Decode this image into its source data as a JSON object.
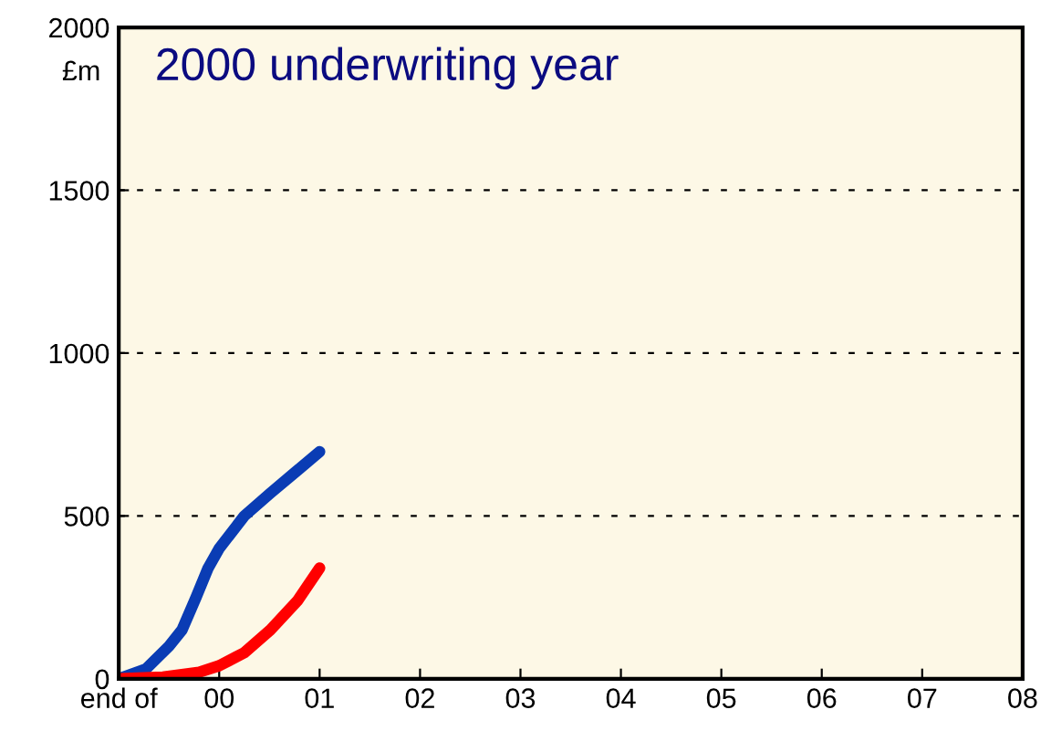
{
  "chart_data": {
    "type": "line",
    "title": "2000 underwriting year",
    "ylabel": "£m",
    "xlim": [
      -1,
      8
    ],
    "xticks": [
      {
        "value": -1,
        "label": "end of"
      },
      {
        "value": 0,
        "label": "00"
      },
      {
        "value": 1,
        "label": "01"
      },
      {
        "value": 2,
        "label": "02"
      },
      {
        "value": 3,
        "label": "03"
      },
      {
        "value": 4,
        "label": "04"
      },
      {
        "value": 5,
        "label": "05"
      },
      {
        "value": 6,
        "label": "06"
      },
      {
        "value": 7,
        "label": "07"
      },
      {
        "value": 8,
        "label": "08"
      }
    ],
    "ylim": [
      0,
      2000
    ],
    "yticks": [
      0,
      500,
      1000,
      1500,
      2000
    ],
    "grid": "y",
    "line_style": "solid",
    "marker": "none",
    "legend": false,
    "series": [
      {
        "color": "#0a3cb4",
        "x": [
          -1,
          -0.73,
          -0.5,
          -0.37,
          -0.23,
          -0.11,
          0,
          0.25,
          0.51,
          0.78,
          1
        ],
        "values": [
          0,
          30,
          100,
          150,
          250,
          340,
          400,
          500,
          570,
          640,
          697
        ]
      },
      {
        "color": "#ff0000",
        "x": [
          -1,
          -0.56,
          -0.2,
          0,
          0.25,
          0.51,
          0.78,
          1
        ],
        "values": [
          0,
          5,
          20,
          40,
          80,
          150,
          240,
          340
        ]
      }
    ]
  }
}
